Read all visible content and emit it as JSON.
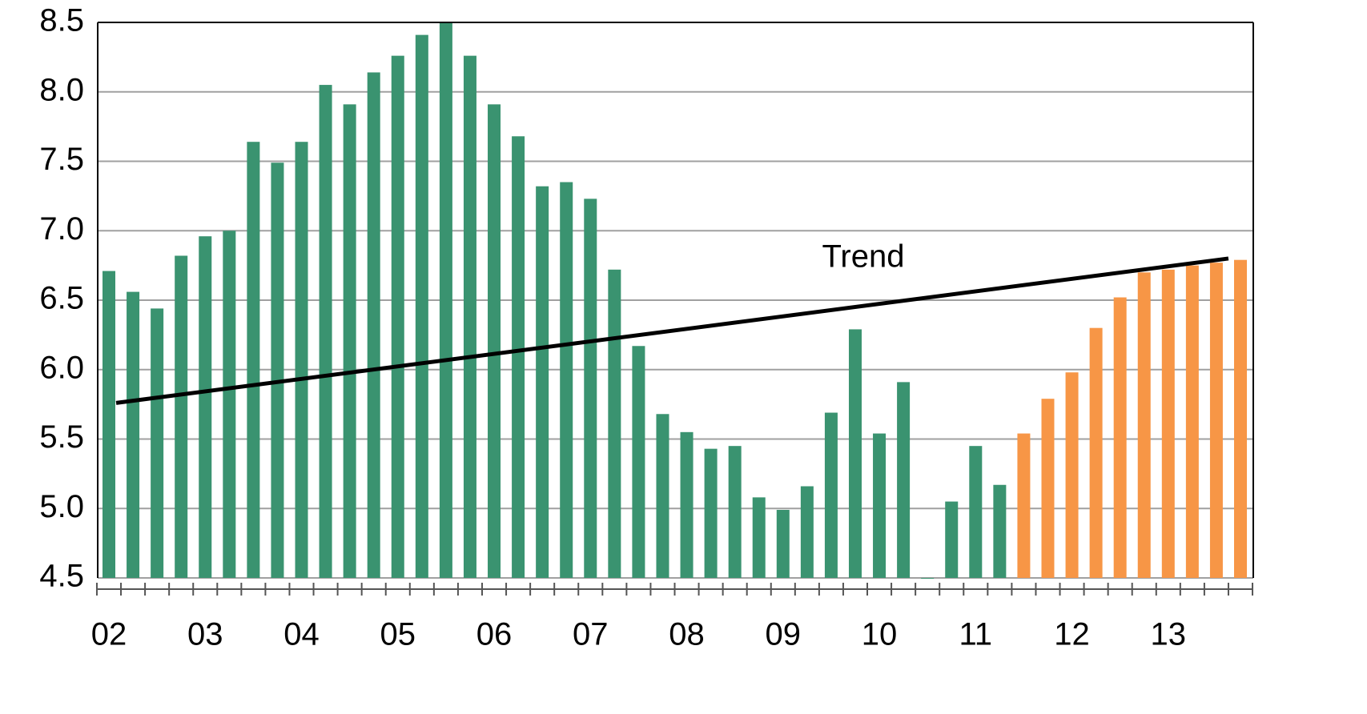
{
  "chart_data": {
    "type": "bar",
    "categories": [
      "02",
      null,
      null,
      null,
      "03",
      null,
      null,
      null,
      "04",
      null,
      null,
      null,
      "05",
      null,
      null,
      null,
      "06",
      null,
      null,
      null,
      "07",
      null,
      null,
      null,
      "08",
      null,
      null,
      null,
      "09",
      null,
      null,
      null,
      "10",
      null,
      null,
      null,
      "11",
      null,
      null,
      null,
      "12",
      null,
      null,
      null,
      "13",
      null,
      null,
      null
    ],
    "series": [
      {
        "color": "#3a9370",
        "values": [
          6.71,
          6.56,
          6.44,
          6.82,
          6.96,
          7.0,
          7.64,
          7.49,
          7.64,
          8.05,
          7.91,
          8.14,
          8.26,
          8.41,
          8.5,
          8.26,
          7.91,
          7.68,
          7.32,
          7.35,
          7.23,
          6.72,
          6.17,
          5.68,
          5.55,
          5.43,
          5.45,
          5.08,
          4.99,
          5.16,
          5.69,
          6.29,
          5.54,
          5.91,
          4.5,
          5.05,
          5.45,
          5.17,
          null,
          null,
          null,
          null,
          null,
          null,
          null,
          null,
          null,
          null
        ]
      },
      {
        "color": "#f79646",
        "values": [
          null,
          null,
          null,
          null,
          null,
          null,
          null,
          null,
          null,
          null,
          null,
          null,
          null,
          null,
          null,
          null,
          null,
          null,
          null,
          null,
          null,
          null,
          null,
          null,
          null,
          null,
          null,
          null,
          null,
          null,
          null,
          null,
          null,
          null,
          null,
          null,
          null,
          null,
          5.54,
          5.79,
          5.98,
          6.3,
          6.52,
          6.7,
          6.72,
          6.75,
          6.77,
          6.79
        ]
      }
    ],
    "trend": {
      "label": "Trend",
      "color": "#000000",
      "values": [
        5.76,
        6.8
      ]
    },
    "ylim": [
      4.5,
      8.5
    ],
    "yticks": [
      4.5,
      {
        "value": 5,
        "label": "5.0"
      },
      5.5,
      {
        "value": 6,
        "label": "6.0"
      },
      6.5,
      {
        "value": 7,
        "label": "7.0"
      },
      7.5,
      {
        "value": 8,
        "label": "8.0"
      },
      8.5
    ],
    "grid": true
  }
}
